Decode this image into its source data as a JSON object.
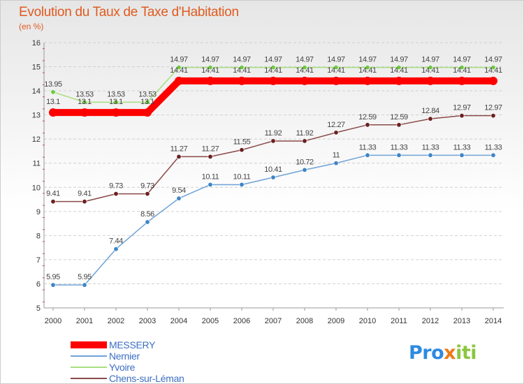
{
  "chart_data": {
    "type": "line",
    "title": "Evolution du Taux de Taxe d'Habitation",
    "subtitle": "(en %)",
    "xlabel": "",
    "ylabel": "",
    "x": [
      "2000",
      "2001",
      "2002",
      "2003",
      "2004",
      "2005",
      "2006",
      "2007",
      "2008",
      "2009",
      "2010",
      "2011",
      "2012",
      "2013",
      "2014"
    ],
    "ylim": [
      5,
      16
    ],
    "yticks": [
      5,
      6,
      7,
      8,
      9,
      10,
      11,
      12,
      13,
      14,
      15,
      16
    ],
    "grid": "horizontal dashed",
    "legend_position": "bottom-left",
    "series": [
      {
        "name": "MESSERY",
        "color": "#ff0000",
        "emphasis": true,
        "values": [
          13.1,
          13.1,
          13.1,
          13.1,
          14.41,
          14.41,
          14.41,
          14.41,
          14.41,
          14.41,
          14.41,
          14.41,
          14.41,
          14.41,
          14.41
        ],
        "labels": [
          "13.1",
          "13.1",
          "13.1",
          "13.1",
          "14.41",
          "14.41",
          "14.41",
          "14.41",
          "14.41",
          "14.41",
          "14.41",
          "14.41",
          "14.41",
          "14.41",
          "14.41"
        ]
      },
      {
        "name": "Nernier",
        "color": "#6fa3d6",
        "marker": "#3e85c6",
        "values": [
          5.95,
          5.95,
          7.44,
          8.56,
          9.54,
          10.11,
          10.11,
          10.41,
          10.72,
          11,
          11.33,
          11.33,
          11.33,
          11.33,
          11.33
        ],
        "labels": [
          "5.95",
          "5.95",
          "7.44",
          "8.56",
          "9.54",
          "10.11",
          "10.11",
          "10.41",
          "10.72",
          "11",
          "11.33",
          "11.33",
          "11.33",
          "11.33",
          "11.33"
        ]
      },
      {
        "name": "Yvoire",
        "color": "#a6df7e",
        "marker": "#6dc93f",
        "values": [
          13.95,
          13.53,
          13.53,
          13.53,
          14.97,
          14.97,
          14.97,
          14.97,
          14.97,
          14.97,
          14.97,
          14.97,
          14.97,
          14.97,
          14.97
        ],
        "labels": [
          "13.95",
          "13.53",
          "13.53",
          "13.53",
          "14.97",
          "14.97",
          "14.97",
          "14.97",
          "14.97",
          "14.97",
          "14.97",
          "14.97",
          "14.97",
          "14.97",
          "14.97"
        ]
      },
      {
        "name": "Chens-sur-Léman",
        "color": "#8b4a4a",
        "marker": "#6b2020",
        "values": [
          9.41,
          9.41,
          9.73,
          9.73,
          11.27,
          11.27,
          11.55,
          11.92,
          11.92,
          12.27,
          12.59,
          12.59,
          12.84,
          12.97,
          12.97
        ],
        "labels": [
          "9.41",
          "9.41",
          "9.73",
          "9.73",
          "11.27",
          "11.27",
          "11.55",
          "11.92",
          "11.92",
          "12.27",
          "12.59",
          "12.59",
          "12.84",
          "12.97",
          "12.97"
        ]
      }
    ]
  },
  "brand": {
    "parts": [
      "Pro",
      "x",
      "iti"
    ],
    "colors": [
      "#2e8ae0",
      "#f07a16",
      "#8cc63f"
    ]
  }
}
